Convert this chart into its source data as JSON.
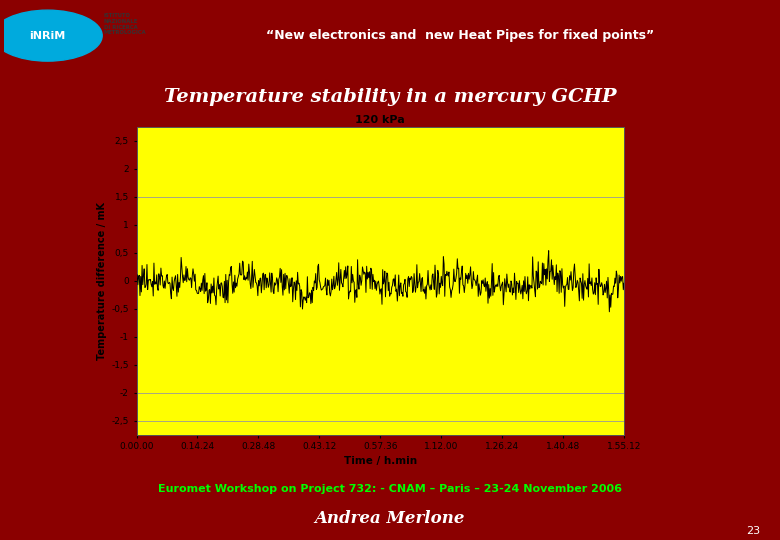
{
  "bg_color": "#8B0000",
  "slide_title": "Temperature stability in a mercury GCHP",
  "slide_title_color": "#FFFFFF",
  "slide_title_fontsize": 14,
  "header_text": "“New electronics and  new Heat Pipes for fixed points”",
  "header_text_color": "#FFFFFF",
  "header_text_fontsize": 9,
  "footer_text": "Euromet Workshop on Project 732: - CNAM – Paris – 23-24 November 2006",
  "footer_text_color": "#00FF00",
  "footer_text_fontsize": 8,
  "author_text": "Andrea Merlone",
  "author_text_color": "#FFFFFF",
  "author_text_fontsize": 12,
  "page_number": "23",
  "chart_bg_color": "#FFFF00",
  "chart_title": "120 kPa",
  "chart_title_fontsize": 8,
  "ylabel": "Temperature difference / mK",
  "xlabel": "Time / h.min",
  "yticks": [
    -2.5,
    -2.0,
    -1.5,
    -1.0,
    -0.5,
    0.0,
    0.5,
    1.0,
    1.5,
    2.0,
    2.5
  ],
  "ytick_labels": [
    "-2,5",
    "-2",
    "-1,5",
    "-1",
    "-0,5",
    "0",
    "0,5",
    "1",
    "1,5",
    "2",
    "2,5"
  ],
  "xtick_labels": [
    "0.00.00",
    "0.14.24",
    "0.28.48",
    "0.43.12",
    "0.57.36",
    "1.12.00",
    "1.26.24",
    "1.40.48",
    "1.55.12"
  ],
  "hline_color": "#999999",
  "data_color": "#000000",
  "separator_blue": "#1111CC",
  "separator_cyan": "#00AADD",
  "num_points": 700,
  "noise_amplitude": 0.15,
  "signal_mean": -0.04,
  "logo_bg": "#FFFFFF",
  "logo_circle_color": "#00AADD",
  "logo_text_color": "#FFFFFF",
  "logo_label_color": "#333333"
}
